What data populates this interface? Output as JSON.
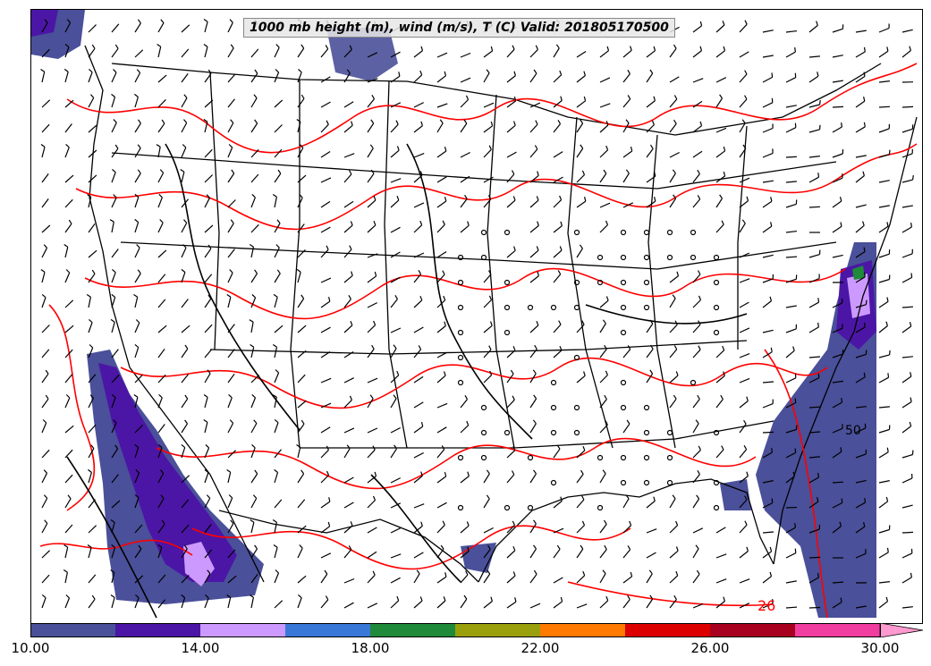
{
  "map": {
    "title": "1000 mb height (m), wind (m/s), T (C) Valid: 201805170500",
    "contour_labels": [
      "50",
      "26"
    ],
    "colors": {
      "temperature_contour": "#ff0000",
      "height_contour": "#000000",
      "borders": "#000000",
      "wind_barbs": "#000000"
    }
  },
  "colorbar": {
    "tick_labels": [
      "10.00",
      "14.00",
      "18.00",
      "22.00",
      "26.00",
      "30.00"
    ],
    "bins": [
      {
        "from": 10,
        "to": 12,
        "color": "#4a5099"
      },
      {
        "from": 12,
        "to": 14,
        "color": "#4b16a5"
      },
      {
        "from": 14,
        "to": 16,
        "color": "#cc99ff"
      },
      {
        "from": 16,
        "to": 18,
        "color": "#3a78d8"
      },
      {
        "from": 18,
        "to": 20,
        "color": "#1f8a3a"
      },
      {
        "from": 20,
        "to": 22,
        "color": "#9aa00c"
      },
      {
        "from": 22,
        "to": 24,
        "color": "#ff7a00"
      },
      {
        "from": 24,
        "to": 26,
        "color": "#dd0000"
      },
      {
        "from": 26,
        "to": 28,
        "color": "#a8001f"
      },
      {
        "from": 28,
        "to": 30,
        "color": "#f03ea0"
      },
      {
        "from": 30,
        "to": null,
        "color": "#ff9ad0"
      }
    ]
  }
}
